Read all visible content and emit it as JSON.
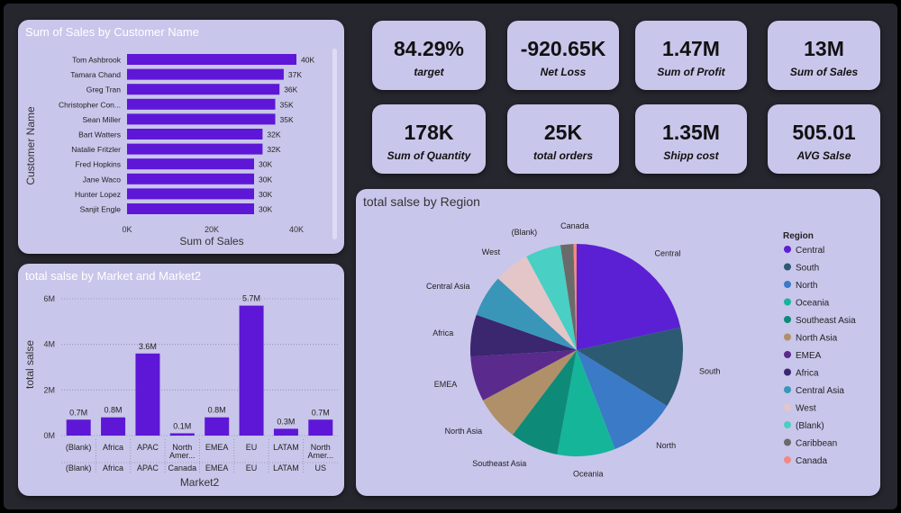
{
  "kpis": [
    {
      "value": "84.29%",
      "label": "target"
    },
    {
      "value": "-920.65K",
      "label": "Net Loss"
    },
    {
      "value": "1.47M",
      "label": "Sum of Profit"
    },
    {
      "value": "13M",
      "label": "Sum of Sales"
    },
    {
      "value": "178K",
      "label": "Sum of Quantity"
    },
    {
      "value": "25K",
      "label": "total orders"
    },
    {
      "value": "1.35M",
      "label": "Shipp cost"
    },
    {
      "value": "505.01",
      "label": "AVG Salse"
    }
  ],
  "chart_data": [
    {
      "type": "bar",
      "orientation": "horizontal",
      "title": "Sum of Sales by Customer Name",
      "xlabel": "Sum of Sales",
      "ylabel": "Customer Name",
      "categories": [
        "Tom Ashbrook",
        "Tamara Chand",
        "Greg Tran",
        "Christopher Con...",
        "Sean Miller",
        "Bart Watters",
        "Natalie Fritzler",
        "Fred Hopkins",
        "Jane Waco",
        "Hunter Lopez",
        "Sanjit Engle"
      ],
      "values": [
        40000,
        37000,
        36000,
        35000,
        35000,
        32000,
        32000,
        30000,
        30000,
        30000,
        30000
      ],
      "data_labels": [
        "40K",
        "37K",
        "36K",
        "35K",
        "35K",
        "32K",
        "32K",
        "30K",
        "30K",
        "30K",
        "30K"
      ],
      "xticks": [
        "0K",
        "20K",
        "40K"
      ],
      "xlim": [
        0,
        40000
      ],
      "color": "#5e17d6"
    },
    {
      "type": "bar",
      "title": "total salse by Market and Market2",
      "xlabel": "Market2",
      "ylabel": "total salse",
      "categories": [
        {
          "top": [
            "(Blank)"
          ],
          "bottom": [
            "(Blank)"
          ]
        },
        {
          "top": [
            "Africa"
          ],
          "bottom": [
            "Africa"
          ]
        },
        {
          "top": [
            "APAC"
          ],
          "bottom": [
            "APAC"
          ]
        },
        {
          "top": [
            "North",
            "Amer..."
          ],
          "bottom": [
            "Canada"
          ]
        },
        {
          "top": [
            "EMEA"
          ],
          "bottom": [
            "EMEA"
          ]
        },
        {
          "top": [
            "EU"
          ],
          "bottom": [
            "EU"
          ]
        },
        {
          "top": [
            "LATAM"
          ],
          "bottom": [
            "LATAM"
          ]
        },
        {
          "top": [
            "North",
            "Amer..."
          ],
          "bottom": [
            "US"
          ]
        }
      ],
      "values": [
        0.7,
        0.8,
        3.6,
        0.1,
        0.8,
        5.7,
        0.3,
        0.7
      ],
      "data_labels": [
        "0.7M",
        "0.8M",
        "3.6M",
        "0.1M",
        "0.8M",
        "5.7M",
        "0.3M",
        "0.7M"
      ],
      "yticks": [
        "0M",
        "2M",
        "4M",
        "6M"
      ],
      "ylim": [
        0,
        6
      ],
      "unit": "M",
      "color": "#5e17d6",
      "grid": true
    },
    {
      "type": "pie",
      "title": "total salse by Region",
      "legend_title": "Region",
      "legend_position": "right",
      "slices": [
        {
          "label": "Central",
          "value": 22.0,
          "color": "#5b1fd4"
        },
        {
          "label": "South",
          "value": 12.5,
          "color": "#2c5a72"
        },
        {
          "label": "North",
          "value": 10.5,
          "color": "#3a7ac7"
        },
        {
          "label": "Oceania",
          "value": 9.0,
          "color": "#15b59a"
        },
        {
          "label": "Southeast Asia",
          "value": 7.5,
          "color": "#0e8a78"
        },
        {
          "label": "North Asia",
          "value": 7.0,
          "color": "#b09068"
        },
        {
          "label": "EMEA",
          "value": 7.0,
          "color": "#5a2a8c"
        },
        {
          "label": "Africa",
          "value": 6.5,
          "color": "#3b2670"
        },
        {
          "label": "Central Asia",
          "value": 6.5,
          "color": "#3a96b8"
        },
        {
          "label": "West",
          "value": 5.5,
          "color": "#e4c6c8"
        },
        {
          "label": "(Blank)",
          "value": 5.5,
          "color": "#49cfc4"
        },
        {
          "label": "Caribbean",
          "value": 2.0,
          "color": "#6a6a6a"
        },
        {
          "label": "Canada",
          "value": 0.5,
          "color": "#f08a82"
        }
      ]
    }
  ]
}
